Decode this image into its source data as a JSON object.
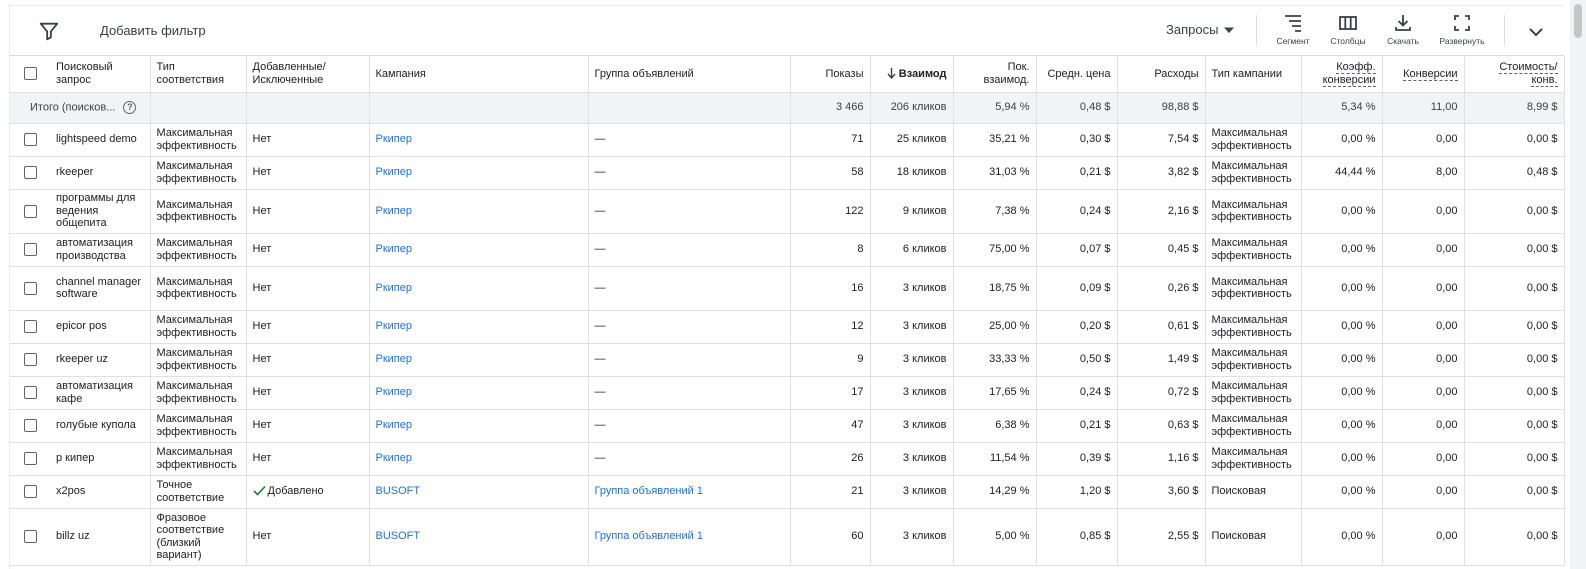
{
  "toolbar": {
    "filter_label": "Добавить фильтр",
    "view_label": "Запросы",
    "tools": [
      {
        "label": "Сегмент",
        "icon": "segment-icon"
      },
      {
        "label": "Столбцы",
        "icon": "columns-icon"
      },
      {
        "label": "Скачать",
        "icon": "download-icon"
      },
      {
        "label": "Развернуть",
        "icon": "fullscreen-icon"
      }
    ]
  },
  "table": {
    "columns": {
      "query": "Поисковый запрос",
      "match_type": "Тип соответствия",
      "added": "Добавленные/ Исключенные",
      "campaign": "Кампания",
      "ad_group": "Группа объявлений",
      "impressions": "Показы",
      "interactions": "Взаимод",
      "interaction_rate": "Пок. взаимод.",
      "avg_cost": "Средн. цена",
      "cost": "Расходы",
      "campaign_type": "Тип кампании",
      "conv_rate": "Коэфф. конверсии",
      "conversions": "Конверсии",
      "cost_per_conv": "Стоимость/ конв."
    },
    "totals": {
      "label": "Итого (поисков...",
      "impressions": "3 466",
      "interactions": "206 кликов",
      "interaction_rate": "5,94 %",
      "avg_cost": "0,48 $",
      "cost": "98,88 $",
      "conv_rate": "5,34 %",
      "conversions": "11,00",
      "cost_per_conv": "8,99 $"
    },
    "rows": [
      {
        "query": "lightspeed demo",
        "match_type": "Максимальная эффективность",
        "added": "Нет",
        "campaign": "Ркипер",
        "ad_group": "—",
        "impressions": "71",
        "interactions": "25 кликов",
        "interaction_rate": "35,21 %",
        "avg_cost": "0,30 $",
        "cost": "7,54 $",
        "campaign_type": "Максимальная эффективность",
        "conv_rate": "0,00 %",
        "conversions": "0,00",
        "cost_per_conv": "0,00 $"
      },
      {
        "query": "rkeeper",
        "match_type": "Максимальная эффективность",
        "added": "Нет",
        "campaign": "Ркипер",
        "ad_group": "—",
        "impressions": "58",
        "interactions": "18 кликов",
        "interaction_rate": "31,03 %",
        "avg_cost": "0,21 $",
        "cost": "3,82 $",
        "campaign_type": "Максимальная эффективность",
        "conv_rate": "44,44 %",
        "conversions": "8,00",
        "cost_per_conv": "0,48 $"
      },
      {
        "query": "программы для ведения общепита",
        "match_type": "Максимальная эффективность",
        "added": "Нет",
        "campaign": "Ркипер",
        "ad_group": "—",
        "impressions": "122",
        "interactions": "9 кликов",
        "interaction_rate": "7,38 %",
        "avg_cost": "0,24 $",
        "cost": "2,16 $",
        "campaign_type": "Максимальная эффективность",
        "conv_rate": "0,00 %",
        "conversions": "0,00",
        "cost_per_conv": "0,00 $"
      },
      {
        "query": "автоматизация производства",
        "match_type": "Максимальная эффективность",
        "added": "Нет",
        "campaign": "Ркипер",
        "ad_group": "—",
        "impressions": "8",
        "interactions": "6 кликов",
        "interaction_rate": "75,00 %",
        "avg_cost": "0,07 $",
        "cost": "0,45 $",
        "campaign_type": "Максимальная эффективность",
        "conv_rate": "0,00 %",
        "conversions": "0,00",
        "cost_per_conv": "0,00 $"
      },
      {
        "query": "channel manager software",
        "match_type": "Максимальная эффективность",
        "added": "Нет",
        "campaign": "Ркипер",
        "ad_group": "—",
        "impressions": "16",
        "interactions": "3 кликов",
        "interaction_rate": "18,75 %",
        "avg_cost": "0,09 $",
        "cost": "0,26 $",
        "campaign_type": "Максимальная эффективность",
        "conv_rate": "0,00 %",
        "conversions": "0,00",
        "cost_per_conv": "0,00 $"
      },
      {
        "query": "epicor pos",
        "match_type": "Максимальная эффективность",
        "added": "Нет",
        "campaign": "Ркипер",
        "ad_group": "—",
        "impressions": "12",
        "interactions": "3 кликов",
        "interaction_rate": "25,00 %",
        "avg_cost": "0,20 $",
        "cost": "0,61 $",
        "campaign_type": "Максимальная эффективность",
        "conv_rate": "0,00 %",
        "conversions": "0,00",
        "cost_per_conv": "0,00 $"
      },
      {
        "query": "rkeeper uz",
        "match_type": "Максимальная эффективность",
        "added": "Нет",
        "campaign": "Ркипер",
        "ad_group": "—",
        "impressions": "9",
        "interactions": "3 кликов",
        "interaction_rate": "33,33 %",
        "avg_cost": "0,50 $",
        "cost": "1,49 $",
        "campaign_type": "Максимальная эффективность",
        "conv_rate": "0,00 %",
        "conversions": "0,00",
        "cost_per_conv": "0,00 $"
      },
      {
        "query": "автоматизация кафе",
        "match_type": "Максимальная эффективность",
        "added": "Нет",
        "campaign": "Ркипер",
        "ad_group": "—",
        "impressions": "17",
        "interactions": "3 кликов",
        "interaction_rate": "17,65 %",
        "avg_cost": "0,24 $",
        "cost": "0,72 $",
        "campaign_type": "Максимальная эффективность",
        "conv_rate": "0,00 %",
        "conversions": "0,00",
        "cost_per_conv": "0,00 $"
      },
      {
        "query": "голубые купола",
        "match_type": "Максимальная эффективность",
        "added": "Нет",
        "campaign": "Ркипер",
        "ad_group": "—",
        "impressions": "47",
        "interactions": "3 кликов",
        "interaction_rate": "6,38 %",
        "avg_cost": "0,21 $",
        "cost": "0,63 $",
        "campaign_type": "Максимальная эффективность",
        "conv_rate": "0,00 %",
        "conversions": "0,00",
        "cost_per_conv": "0,00 $"
      },
      {
        "query": "р кипер",
        "match_type": "Максимальная эффективность",
        "added": "Нет",
        "campaign": "Ркипер",
        "ad_group": "—",
        "impressions": "26",
        "interactions": "3 кликов",
        "interaction_rate": "11,54 %",
        "avg_cost": "0,39 $",
        "cost": "1,16 $",
        "campaign_type": "Максимальная эффективность",
        "conv_rate": "0,00 %",
        "conversions": "0,00",
        "cost_per_conv": "0,00 $"
      },
      {
        "query": "x2pos",
        "match_type": "Точное соответствие",
        "added": "Добавлено",
        "campaign": "BUSOFT",
        "ad_group": "Группа объявлений 1",
        "impressions": "21",
        "interactions": "3 кликов",
        "interaction_rate": "14,29 %",
        "avg_cost": "1,20 $",
        "cost": "3,60 $",
        "campaign_type": "Поисковая",
        "conv_rate": "0,00 %",
        "conversions": "0,00",
        "cost_per_conv": "0,00 $"
      },
      {
        "query": "billz uz",
        "match_type": "Фразовое соответствие (близкий вариант)",
        "added": "Нет",
        "campaign": "BUSOFT",
        "ad_group": "Группа объявлений 1",
        "impressions": "60",
        "interactions": "3 кликов",
        "interaction_rate": "5,00 %",
        "avg_cost": "0,85 $",
        "cost": "2,55 $",
        "campaign_type": "Поисковая",
        "conv_rate": "0,00 %",
        "conversions": "0,00",
        "cost_per_conv": "0,00 $"
      }
    ]
  }
}
